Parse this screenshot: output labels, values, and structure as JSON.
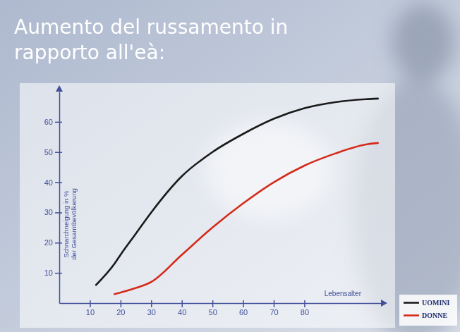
{
  "chart_data": {
    "type": "line",
    "title": "Aumento del russamento in rapporto all'eà:",
    "x_label": "Lebensalter",
    "y_label": "Schnarchneigung in % der Gesamtbevölkerung",
    "x": [
      12,
      18,
      20,
      25,
      30,
      40,
      50,
      60,
      70,
      80,
      90,
      100,
      104
    ],
    "series": [
      {
        "name": "UOMINI",
        "color": "#1a1a1a",
        "values": [
          6,
          13,
          16,
          23,
          30,
          42,
          50,
          56,
          61,
          64.5,
          66.5,
          67.5,
          67.7
        ]
      },
      {
        "name": "DONNE",
        "color": "#d42a1a",
        "values": [
          null,
          3,
          3.5,
          5,
          7,
          16,
          25,
          33,
          40,
          45.5,
          49.5,
          52.5,
          53
        ]
      }
    ],
    "xlim": [
      0,
      105
    ],
    "xticks": [
      10,
      20,
      30,
      40,
      50,
      60,
      70,
      80
    ],
    "ylim": [
      0,
      70
    ],
    "yticks": [
      10,
      20,
      30,
      40,
      50,
      60
    ],
    "grid": false,
    "legend": "bottom-right"
  }
}
